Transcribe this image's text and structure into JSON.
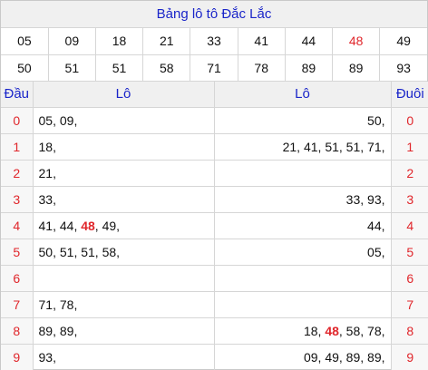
{
  "title": "Bảng lô tô Đắc Lắc",
  "numbers": [
    [
      "05",
      "09",
      "18",
      "21",
      "33",
      "41",
      "44",
      "48",
      "49"
    ],
    [
      "50",
      "51",
      "51",
      "58",
      "71",
      "78",
      "89",
      "89",
      "93"
    ]
  ],
  "highlight_number": "48",
  "header": {
    "dau": "Đầu",
    "lo_left": "Lô",
    "lo_right": "Lô",
    "duoi": "Đuôi"
  },
  "rows": [
    {
      "digit": "0",
      "left": [
        "05",
        "09"
      ],
      "right": [
        "50"
      ]
    },
    {
      "digit": "1",
      "left": [
        "18"
      ],
      "right": [
        "21",
        "41",
        "51",
        "51",
        "71"
      ]
    },
    {
      "digit": "2",
      "left": [
        "21"
      ],
      "right": []
    },
    {
      "digit": "3",
      "left": [
        "33"
      ],
      "right": [
        "33",
        "93"
      ]
    },
    {
      "digit": "4",
      "left": [
        "41",
        "44",
        "48",
        "49"
      ],
      "right": [
        "44"
      ]
    },
    {
      "digit": "5",
      "left": [
        "50",
        "51",
        "51",
        "58"
      ],
      "right": [
        "05"
      ]
    },
    {
      "digit": "6",
      "left": [],
      "right": []
    },
    {
      "digit": "7",
      "left": [
        "71",
        "78"
      ],
      "right": []
    },
    {
      "digit": "8",
      "left": [
        "89",
        "89"
      ],
      "right": [
        "18",
        "48",
        "58",
        "78"
      ]
    },
    {
      "digit": "9",
      "left": [
        "93"
      ],
      "right": [
        "09",
        "49",
        "89",
        "89"
      ]
    }
  ],
  "colors": {
    "title_blue": "#1a25c9",
    "accent_red": "#e0262b",
    "header_bg": "#f0f0f0"
  }
}
